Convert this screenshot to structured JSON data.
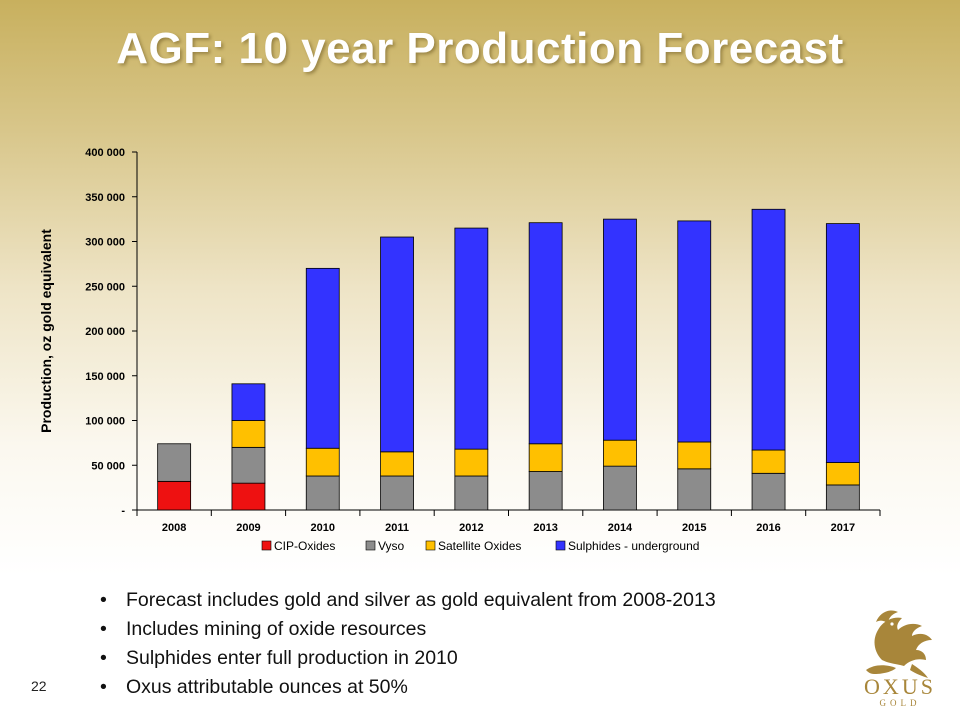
{
  "slide": {
    "title": "AGF: 10 year Production Forecast",
    "page_number": "22",
    "bullets": [
      "Forecast includes gold and silver as gold equivalent from 2008-2013",
      "Includes mining of oxide resources",
      "Sulphides enter full production in 2010",
      "Oxus attributable ounces at 50%"
    ],
    "logo": {
      "icon": "griffin-icon",
      "name": "OXUS",
      "sub": "GOLD",
      "color": "#a8863a"
    }
  },
  "chart_data": {
    "type": "bar",
    "stacked": true,
    "categories": [
      "2008",
      "2009",
      "2010",
      "2011",
      "2012",
      "2013",
      "2014",
      "2015",
      "2016",
      "2017"
    ],
    "series": [
      {
        "name": "CIP-Oxides",
        "color": "#ee1111",
        "values": [
          32000,
          30000,
          0,
          0,
          0,
          0,
          0,
          0,
          0,
          0
        ]
      },
      {
        "name": "Vyso",
        "color": "#8c8c8c",
        "values": [
          42000,
          40000,
          38000,
          38000,
          38000,
          43000,
          49000,
          46000,
          41000,
          28000
        ]
      },
      {
        "name": "Satellite Oxides",
        "color": "#ffc000",
        "values": [
          0,
          30000,
          31000,
          27000,
          30000,
          31000,
          29000,
          30000,
          26000,
          25000
        ]
      },
      {
        "name": "Sulphides - underground",
        "color": "#3333ff",
        "values": [
          0,
          41000,
          201000,
          240000,
          247000,
          247000,
          247000,
          247000,
          269000,
          267000
        ]
      }
    ],
    "ylabel": "Production, oz gold equivalent",
    "ylim": [
      0,
      400000
    ],
    "yticks": [
      {
        "value": 0,
        "label": "-"
      },
      {
        "value": 50000,
        "label": "50 000"
      },
      {
        "value": 100000,
        "label": "100 000"
      },
      {
        "value": 150000,
        "label": "150 000"
      },
      {
        "value": 200000,
        "label": "200 000"
      },
      {
        "value": 250000,
        "label": "250 000"
      },
      {
        "value": 300000,
        "label": "300 000"
      },
      {
        "value": 350000,
        "label": "350 000"
      },
      {
        "value": 400000,
        "label": "400 000"
      }
    ],
    "grid": false,
    "legend": "bottom"
  }
}
